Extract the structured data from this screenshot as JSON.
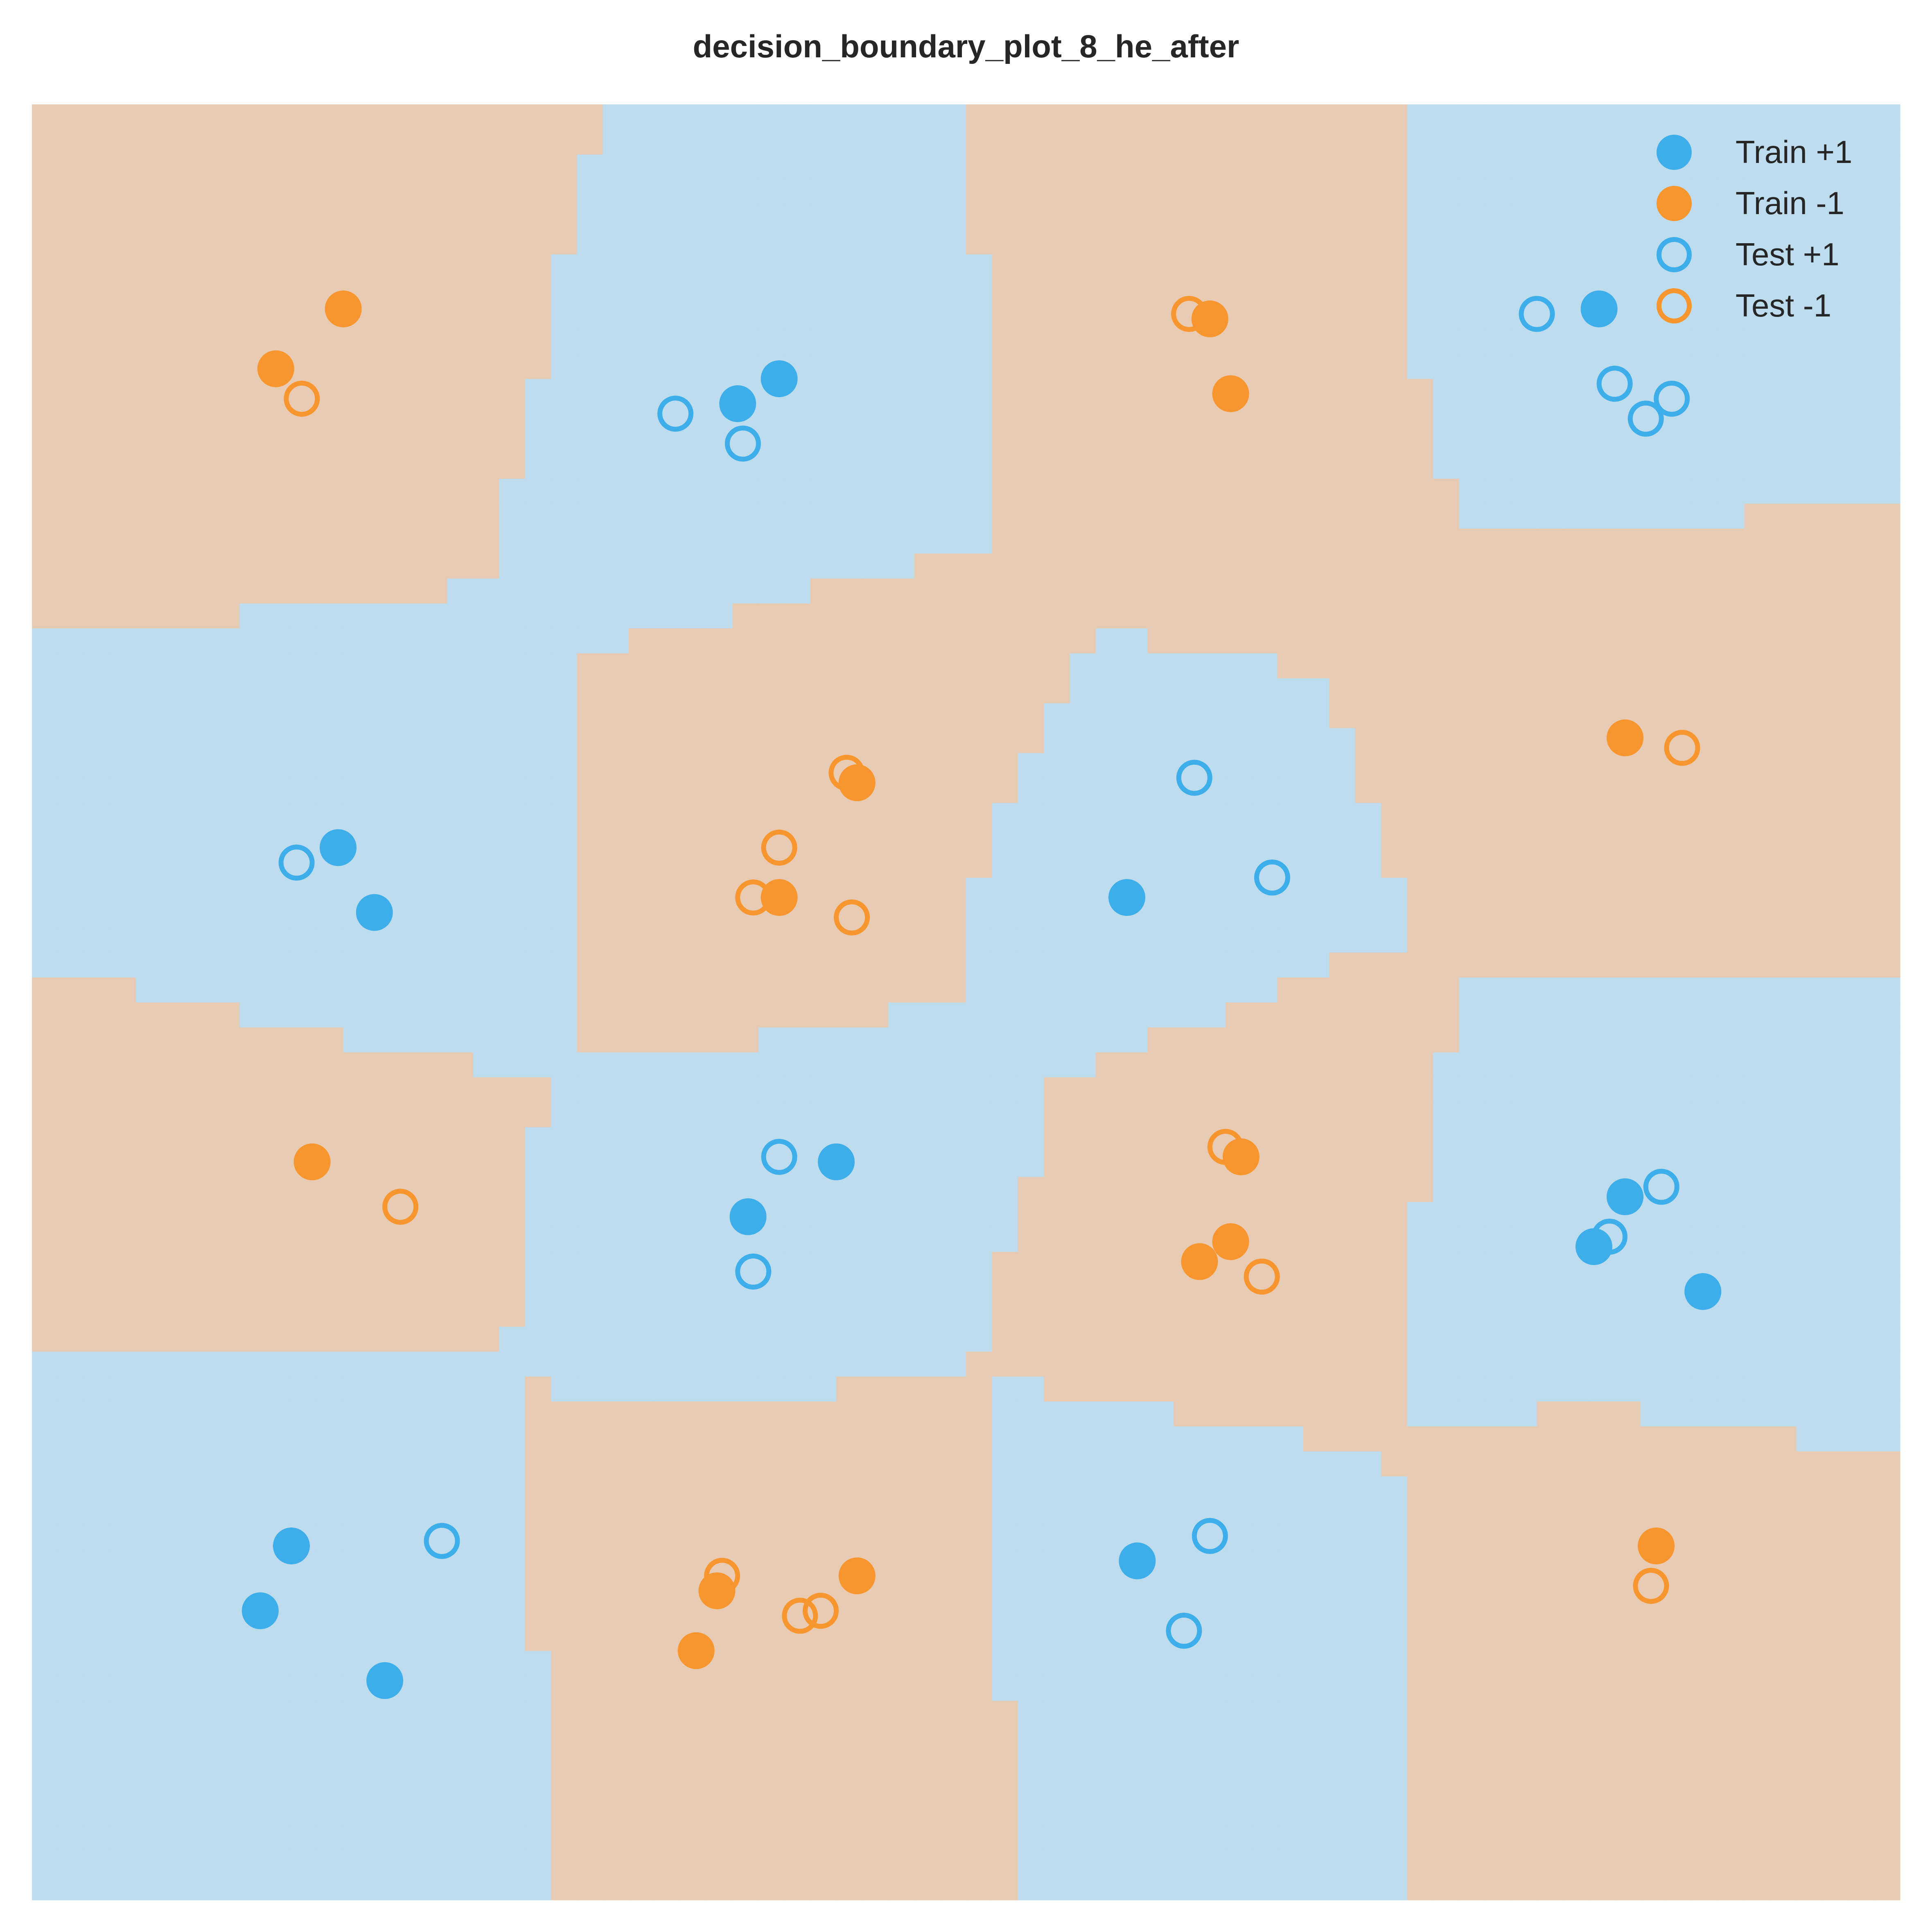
{
  "chart_data": {
    "type": "scatter",
    "title": "decision_boundary_plot_8_he_after",
    "xlabel": "",
    "ylabel": "",
    "xlim": [
      0,
      18
    ],
    "ylim": [
      0,
      18
    ],
    "grid": false,
    "legend_position": "top-right",
    "colors": {
      "positive": "#3daee9",
      "negative": "#f7962f",
      "region_positive": "#bddcee",
      "region_negative": "#e8cbb2"
    },
    "legend": [
      {
        "label": "Train +1",
        "series": "train_pos"
      },
      {
        "label": "Train -1",
        "series": "train_neg"
      },
      {
        "label": "Test +1",
        "series": "test_pos"
      },
      {
        "label": "Test -1",
        "series": "test_neg"
      }
    ],
    "regions_note": "background shaded by predicted class on a coarse grid",
    "series": [
      {
        "id": "train_pos",
        "name": "Train +1",
        "label": 1,
        "filled": true,
        "points": [
          [
            2.95,
            10.55
          ],
          [
            3.3,
            9.9
          ],
          [
            6.8,
            15.0
          ],
          [
            7.2,
            15.25
          ],
          [
            10.55,
            10.05
          ],
          [
            15.1,
            15.95
          ],
          [
            15.35,
            7.05
          ],
          [
            15.05,
            6.55
          ],
          [
            16.1,
            6.1
          ],
          [
            6.9,
            6.85
          ],
          [
            7.75,
            7.4
          ],
          [
            2.5,
            3.55
          ],
          [
            2.2,
            2.9
          ],
          [
            3.4,
            2.2
          ],
          [
            10.65,
            3.4
          ]
        ]
      },
      {
        "id": "train_neg",
        "name": "Train -1",
        "label": -1,
        "filled": true,
        "points": [
          [
            3.0,
            15.95
          ],
          [
            2.35,
            15.35
          ],
          [
            11.35,
            15.85
          ],
          [
            11.55,
            15.1
          ],
          [
            7.95,
            11.2
          ],
          [
            7.2,
            10.05
          ],
          [
            15.35,
            11.65
          ],
          [
            2.7,
            7.4
          ],
          [
            11.65,
            7.45
          ],
          [
            11.55,
            6.6
          ],
          [
            11.25,
            6.4
          ],
          [
            7.95,
            3.25
          ],
          [
            6.6,
            3.1
          ],
          [
            6.4,
            2.5
          ],
          [
            15.65,
            3.55
          ]
        ]
      },
      {
        "id": "test_pos",
        "name": "Test +1",
        "label": 1,
        "filled": false,
        "points": [
          [
            6.2,
            14.9
          ],
          [
            6.85,
            14.6
          ],
          [
            14.5,
            15.9
          ],
          [
            15.25,
            15.2
          ],
          [
            15.55,
            14.85
          ],
          [
            15.8,
            15.05
          ],
          [
            2.55,
            10.4
          ],
          [
            11.2,
            11.25
          ],
          [
            11.95,
            10.25
          ],
          [
            7.2,
            7.45
          ],
          [
            6.95,
            6.3
          ],
          [
            15.7,
            7.15
          ],
          [
            15.2,
            6.65
          ],
          [
            3.95,
            3.6
          ],
          [
            11.35,
            3.65
          ],
          [
            11.1,
            2.7
          ]
        ]
      },
      {
        "id": "test_neg",
        "name": "Test -1",
        "label": -1,
        "filled": false,
        "points": [
          [
            2.6,
            15.05
          ],
          [
            11.15,
            15.9
          ],
          [
            15.9,
            11.55
          ],
          [
            7.85,
            11.3
          ],
          [
            7.2,
            10.55
          ],
          [
            6.95,
            10.05
          ],
          [
            7.9,
            9.85
          ],
          [
            3.55,
            6.95
          ],
          [
            11.5,
            7.55
          ],
          [
            11.85,
            6.25
          ],
          [
            6.65,
            3.25
          ],
          [
            7.6,
            2.9
          ],
          [
            7.4,
            2.85
          ],
          [
            15.6,
            3.15
          ]
        ]
      }
    ]
  }
}
